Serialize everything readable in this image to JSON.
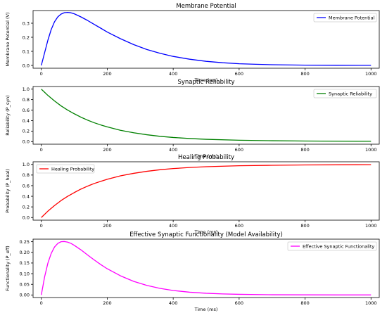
{
  "chart_data": [
    {
      "type": "line",
      "title": "Membrane Potential",
      "xlabel": "Time (ms)",
      "ylabel": "Membrane Potential (V)",
      "xlim": [
        -25,
        1025
      ],
      "ylim": [
        -0.02,
        0.39
      ],
      "xticks": [
        0,
        200,
        400,
        600,
        800,
        1000
      ],
      "yticks": [
        0.0,
        0.1,
        0.2,
        0.3
      ],
      "ytick_labels": [
        "0.0",
        "0.1",
        "0.2",
        "0.3"
      ],
      "grid": false,
      "legend_position": "top-right",
      "series": [
        {
          "name": "Membrane Potential",
          "color": "#0000ff",
          "x": [
            0,
            10,
            20,
            30,
            40,
            50,
            60,
            70,
            80,
            90,
            100,
            120,
            140,
            160,
            180,
            200,
            240,
            280,
            320,
            360,
            400,
            450,
            500,
            550,
            600,
            650,
            700,
            800,
            900,
            1000
          ],
          "y": [
            0.0,
            0.09,
            0.18,
            0.255,
            0.31,
            0.345,
            0.365,
            0.375,
            0.377,
            0.374,
            0.367,
            0.345,
            0.32,
            0.292,
            0.265,
            0.237,
            0.19,
            0.148,
            0.113,
            0.086,
            0.064,
            0.044,
            0.029,
            0.019,
            0.012,
            0.008,
            0.005,
            0.002,
            0.001,
            0.0005
          ]
        }
      ]
    },
    {
      "type": "line",
      "title": "Synaptic Reliability",
      "xlabel": "Time (ms)",
      "ylabel": "Reliability (P_syn)",
      "xlim": [
        -25,
        1025
      ],
      "ylim": [
        -0.05,
        1.05
      ],
      "xticks": [
        0,
        200,
        400,
        600,
        800,
        1000
      ],
      "yticks": [
        0.0,
        0.2,
        0.4,
        0.6,
        0.8,
        1.0
      ],
      "ytick_labels": [
        "0.0",
        "0.2",
        "0.4",
        "0.6",
        "0.8",
        "1.0"
      ],
      "grid": false,
      "legend_position": "top-right",
      "series": [
        {
          "name": "Synaptic Reliability",
          "color": "#008000",
          "x": [
            0,
            20,
            40,
            60,
            80,
            100,
            120,
            140,
            160,
            180,
            200,
            240,
            280,
            320,
            360,
            400,
            450,
            500,
            600,
            700,
            800,
            900,
            1000
          ],
          "y": [
            1.0,
            0.88,
            0.775,
            0.68,
            0.6,
            0.53,
            0.465,
            0.41,
            0.36,
            0.318,
            0.28,
            0.215,
            0.168,
            0.13,
            0.1,
            0.078,
            0.058,
            0.043,
            0.025,
            0.016,
            0.01,
            0.007,
            0.005
          ]
        }
      ]
    },
    {
      "type": "line",
      "title": "Healing Probability",
      "xlabel": "Time (ms)",
      "ylabel": "Probability (P_heal)",
      "xlim": [
        -25,
        1025
      ],
      "ylim": [
        -0.05,
        1.05
      ],
      "xticks": [
        0,
        200,
        400,
        600,
        800,
        1000
      ],
      "yticks": [
        0.0,
        0.2,
        0.4,
        0.6,
        0.8,
        1.0
      ],
      "ytick_labels": [
        "0.0",
        "0.2",
        "0.4",
        "0.6",
        "0.8",
        "1.0"
      ],
      "grid": false,
      "legend_position": "top-left",
      "series": [
        {
          "name": "Healing Probability",
          "color": "#ff0000",
          "x": [
            0,
            20,
            40,
            60,
            80,
            100,
            120,
            140,
            160,
            180,
            200,
            240,
            280,
            320,
            360,
            400,
            450,
            500,
            600,
            700,
            800,
            900,
            1000
          ],
          "y": [
            0.0,
            0.12,
            0.225,
            0.32,
            0.4,
            0.47,
            0.535,
            0.59,
            0.64,
            0.68,
            0.72,
            0.785,
            0.832,
            0.87,
            0.9,
            0.922,
            0.942,
            0.957,
            0.975,
            0.984,
            0.99,
            0.993,
            0.995
          ]
        }
      ]
    },
    {
      "type": "line",
      "title": "Effective Synaptic Functionality (Model Availability)",
      "xlabel": "Time (ms)",
      "ylabel": "Functionality (P_eff)",
      "xlim": [
        -25,
        1025
      ],
      "ylim": [
        -0.012,
        0.262
      ],
      "xticks": [
        0,
        200,
        400,
        600,
        800,
        1000
      ],
      "yticks": [
        0.0,
        0.05,
        0.1,
        0.15,
        0.2,
        0.25
      ],
      "ytick_labels": [
        "0.00",
        "0.05",
        "0.10",
        "0.15",
        "0.20",
        "0.25"
      ],
      "grid": false,
      "legend_position": "top-right",
      "series": [
        {
          "name": "Effective Synaptic Functionality",
          "color": "#ff00ff",
          "x": [
            0,
            10,
            20,
            30,
            40,
            50,
            60,
            70,
            80,
            90,
            100,
            120,
            140,
            160,
            180,
            200,
            240,
            280,
            320,
            360,
            400,
            450,
            500,
            550,
            600,
            700,
            800,
            900,
            1000
          ],
          "y": [
            0.0,
            0.085,
            0.15,
            0.195,
            0.225,
            0.242,
            0.25,
            0.251,
            0.248,
            0.242,
            0.233,
            0.212,
            0.188,
            0.165,
            0.143,
            0.123,
            0.09,
            0.064,
            0.045,
            0.031,
            0.021,
            0.013,
            0.008,
            0.005,
            0.003,
            0.001,
            0.0005,
            0.0002,
            0.0001
          ]
        }
      ]
    }
  ]
}
